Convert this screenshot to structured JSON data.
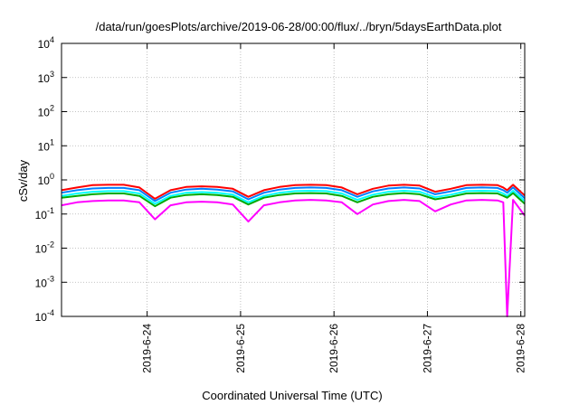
{
  "chart_data": {
    "type": "line",
    "title": "/data/run/goesPlots/archive/2019-06-28/00:00/flux/../bryn/5daysEarthData.plot",
    "xlabel": "Coordinated Universal Time (UTC)",
    "ylabel": "cSv/day",
    "yscale": "log",
    "ylim": [
      0.0001,
      10000
    ],
    "xlim": [
      "2019-06-23T02:00",
      "2019-06-28T01:00"
    ],
    "grid": true,
    "x_ticks": [
      {
        "label": "2019-6-24",
        "value": "2019-06-24T00:00"
      },
      {
        "label": "2019-6-25",
        "value": "2019-06-25T00:00"
      },
      {
        "label": "2019-6-26",
        "value": "2019-06-26T00:00"
      },
      {
        "label": "2019-6-27",
        "value": "2019-06-27T00:00"
      },
      {
        "label": "2019-6-28",
        "value": "2019-06-28T00:00"
      }
    ],
    "y_ticks": [
      {
        "base": "10",
        "exp": "-4",
        "value": 0.0001
      },
      {
        "base": "10",
        "exp": "-3",
        "value": 0.001
      },
      {
        "base": "10",
        "exp": "-2",
        "value": 0.01
      },
      {
        "base": "10",
        "exp": "-1",
        "value": 0.1
      },
      {
        "base": "10",
        "exp": "0",
        "value": 1
      },
      {
        "base": "10",
        "exp": "1",
        "value": 10
      },
      {
        "base": "10",
        "exp": "2",
        "value": 100
      },
      {
        "base": "10",
        "exp": "3",
        "value": 1000
      },
      {
        "base": "10",
        "exp": "4",
        "value": 10000
      }
    ],
    "x": [
      "2019-06-23T02:00",
      "2019-06-23T06:00",
      "2019-06-23T10:00",
      "2019-06-23T14:00",
      "2019-06-23T18:00",
      "2019-06-23T22:00",
      "2019-06-24T02:00",
      "2019-06-24T06:00",
      "2019-06-24T10:00",
      "2019-06-24T14:00",
      "2019-06-24T18:00",
      "2019-06-24T22:00",
      "2019-06-25T02:00",
      "2019-06-25T06:00",
      "2019-06-25T10:00",
      "2019-06-25T14:00",
      "2019-06-25T18:00",
      "2019-06-25T22:00",
      "2019-06-26T02:00",
      "2019-06-26T06:00",
      "2019-06-26T10:00",
      "2019-06-26T14:00",
      "2019-06-26T18:00",
      "2019-06-26T22:00",
      "2019-06-27T02:00",
      "2019-06-27T06:00",
      "2019-06-27T10:00",
      "2019-06-27T14:00",
      "2019-06-27T18:00",
      "2019-06-27T19:30",
      "2019-06-27T20:30",
      "2019-06-27T22:00",
      "2019-06-28T01:00"
    ],
    "series": [
      {
        "color": "#ff0000",
        "values": [
          0.5,
          0.6,
          0.7,
          0.72,
          0.72,
          0.6,
          0.28,
          0.5,
          0.62,
          0.65,
          0.62,
          0.55,
          0.32,
          0.5,
          0.62,
          0.7,
          0.72,
          0.7,
          0.6,
          0.38,
          0.55,
          0.68,
          0.72,
          0.68,
          0.45,
          0.55,
          0.7,
          0.72,
          0.7,
          0.6,
          0.5,
          0.72,
          0.35
        ]
      },
      {
        "color": "#0080ff",
        "values": [
          0.42,
          0.5,
          0.56,
          0.58,
          0.58,
          0.5,
          0.24,
          0.42,
          0.52,
          0.55,
          0.52,
          0.46,
          0.27,
          0.42,
          0.52,
          0.58,
          0.6,
          0.58,
          0.5,
          0.32,
          0.46,
          0.56,
          0.6,
          0.56,
          0.38,
          0.46,
          0.58,
          0.6,
          0.58,
          0.5,
          0.42,
          0.6,
          0.29
        ]
      },
      {
        "color": "#00ffff",
        "values": [
          0.34,
          0.4,
          0.45,
          0.47,
          0.47,
          0.4,
          0.2,
          0.34,
          0.42,
          0.44,
          0.42,
          0.37,
          0.22,
          0.34,
          0.42,
          0.47,
          0.48,
          0.47,
          0.4,
          0.26,
          0.37,
          0.45,
          0.48,
          0.45,
          0.31,
          0.37,
          0.47,
          0.48,
          0.47,
          0.4,
          0.34,
          0.48,
          0.24
        ]
      },
      {
        "color": "#00aa00",
        "values": [
          0.3,
          0.34,
          0.38,
          0.4,
          0.4,
          0.34,
          0.17,
          0.3,
          0.36,
          0.38,
          0.36,
          0.32,
          0.19,
          0.3,
          0.36,
          0.4,
          0.41,
          0.4,
          0.34,
          0.22,
          0.32,
          0.38,
          0.41,
          0.38,
          0.27,
          0.32,
          0.4,
          0.41,
          0.4,
          0.34,
          0.3,
          0.41,
          0.2
        ]
      },
      {
        "color": "#ff00ff",
        "values": [
          0.18,
          0.22,
          0.24,
          0.25,
          0.25,
          0.22,
          0.07,
          0.18,
          0.22,
          0.23,
          0.22,
          0.19,
          0.06,
          0.18,
          0.22,
          0.25,
          0.26,
          0.25,
          0.22,
          0.1,
          0.19,
          0.24,
          0.26,
          0.24,
          0.12,
          0.19,
          0.25,
          0.26,
          0.25,
          0.22,
          0.0001,
          0.26,
          0.09
        ]
      }
    ]
  }
}
